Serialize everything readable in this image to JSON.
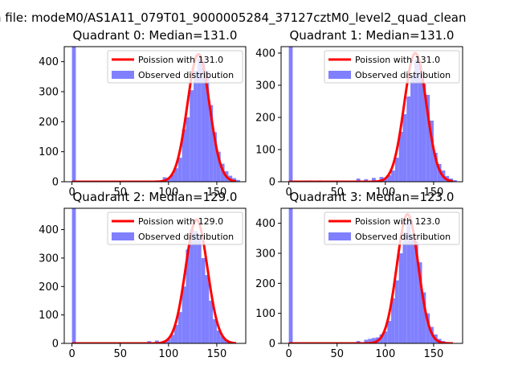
{
  "figure": {
    "suptitle": "n file: modeM0/AS1A11_079T01_9000005284_37127cztM0_level2_quad_clean"
  },
  "chart_data": [
    {
      "type": "bar+line",
      "title": "Quadrant 0: Median=131.0",
      "xlim": [
        -8,
        180
      ],
      "ylim": [
        0,
        450
      ],
      "xticks": [
        0,
        50,
        100,
        150
      ],
      "yticks": [
        0,
        100,
        200,
        300,
        400
      ],
      "legend_position": "upper-right",
      "series": [
        {
          "name": "Poission with 131.0",
          "kind": "line",
          "color": "#ff0000",
          "mean": 131.0,
          "peak": 425
        },
        {
          "name": "Observed distribution",
          "kind": "histogram",
          "color": "#8080ff",
          "bins": [
            [
              0,
              450
            ],
            [
              94,
              15
            ],
            [
              98,
              12
            ],
            [
              102,
              25
            ],
            [
              106,
              45
            ],
            [
              110,
              80
            ],
            [
              114,
              175
            ],
            [
              118,
              215
            ],
            [
              122,
              305
            ],
            [
              126,
              370
            ],
            [
              130,
              410
            ],
            [
              134,
              400
            ],
            [
              138,
              370
            ],
            [
              142,
              255
            ],
            [
              146,
              165
            ],
            [
              150,
              100
            ],
            [
              154,
              60
            ],
            [
              158,
              35
            ],
            [
              162,
              20
            ],
            [
              166,
              12
            ],
            [
              170,
              6
            ]
          ]
        }
      ]
    },
    {
      "type": "bar+line",
      "title": "Quadrant 1: Median=131.0",
      "xlim": [
        -8,
        180
      ],
      "ylim": [
        0,
        420
      ],
      "xticks": [
        0,
        50,
        100,
        150
      ],
      "yticks": [
        0,
        100,
        200,
        300,
        400
      ],
      "legend_position": "upper-right",
      "series": [
        {
          "name": "Poission with 131.0",
          "kind": "line",
          "color": "#ff0000",
          "mean": 131.0,
          "peak": 400
        },
        {
          "name": "Observed distribution",
          "kind": "histogram",
          "color": "#8080ff",
          "bins": [
            [
              0,
              420
            ],
            [
              20,
              4
            ],
            [
              30,
              4
            ],
            [
              70,
              10
            ],
            [
              78,
              8
            ],
            [
              86,
              12
            ],
            [
              94,
              15
            ],
            [
              98,
              10
            ],
            [
              102,
              20
            ],
            [
              106,
              35
            ],
            [
              110,
              75
            ],
            [
              114,
              155
            ],
            [
              118,
              210
            ],
            [
              122,
              265
            ],
            [
              126,
              330
            ],
            [
              130,
              380
            ],
            [
              134,
              365
            ],
            [
              138,
              305
            ],
            [
              142,
              270
            ],
            [
              146,
              190
            ],
            [
              150,
              90
            ],
            [
              154,
              55
            ],
            [
              158,
              35
            ],
            [
              162,
              18
            ],
            [
              166,
              10
            ],
            [
              170,
              5
            ]
          ]
        }
      ]
    },
    {
      "type": "bar+line",
      "title": "Quadrant 2: Median=129.0",
      "xlim": [
        -8,
        180
      ],
      "ylim": [
        0,
        475
      ],
      "xticks": [
        0,
        50,
        100,
        150
      ],
      "yticks": [
        0,
        100,
        200,
        300,
        400
      ],
      "legend_position": "upper-right",
      "series": [
        {
          "name": "Poission with 129.0",
          "kind": "line",
          "color": "#ff0000",
          "mean": 129.0,
          "peak": 435
        },
        {
          "name": "Observed distribution",
          "kind": "histogram",
          "color": "#8080ff",
          "bins": [
            [
              0,
              475
            ],
            [
              78,
              8
            ],
            [
              86,
              10
            ],
            [
              94,
              10
            ],
            [
              98,
              15
            ],
            [
              102,
              30
            ],
            [
              106,
              65
            ],
            [
              110,
              110
            ],
            [
              114,
              200
            ],
            [
              118,
              330
            ],
            [
              122,
              400
            ],
            [
              126,
              395
            ],
            [
              130,
              380
            ],
            [
              134,
              300
            ],
            [
              138,
              240
            ],
            [
              142,
              150
            ],
            [
              146,
              85
            ],
            [
              150,
              45
            ],
            [
              154,
              25
            ],
            [
              158,
              12
            ],
            [
              162,
              6
            ]
          ]
        }
      ]
    },
    {
      "type": "bar+line",
      "title": "Quadrant 3: Median=123.0",
      "xlim": [
        -8,
        180
      ],
      "ylim": [
        0,
        450
      ],
      "xticks": [
        0,
        50,
        100,
        150
      ],
      "yticks": [
        0,
        100,
        200,
        300,
        400
      ],
      "legend_position": "upper-right",
      "series": [
        {
          "name": "Poission with 123.0",
          "kind": "line",
          "color": "#ff0000",
          "mean": 123.0,
          "peak": 430
        },
        {
          "name": "Observed distribution",
          "kind": "histogram",
          "color": "#8080ff",
          "bins": [
            [
              0,
              450
            ],
            [
              70,
              8
            ],
            [
              78,
              12
            ],
            [
              82,
              15
            ],
            [
              86,
              18
            ],
            [
              90,
              20
            ],
            [
              94,
              30
            ],
            [
              98,
              40
            ],
            [
              102,
              75
            ],
            [
              106,
              150
            ],
            [
              110,
              210
            ],
            [
              114,
              300
            ],
            [
              118,
              370
            ],
            [
              122,
              410
            ],
            [
              126,
              360
            ],
            [
              130,
              340
            ],
            [
              134,
              270
            ],
            [
              138,
              170
            ],
            [
              142,
              100
            ],
            [
              146,
              55
            ],
            [
              150,
              30
            ],
            [
              154,
              15
            ],
            [
              158,
              8
            ],
            [
              162,
              4
            ]
          ]
        }
      ]
    }
  ]
}
